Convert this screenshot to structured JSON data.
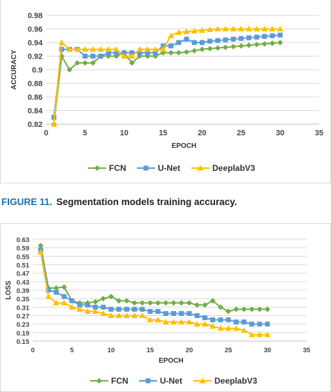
{
  "caption": {
    "label": "FIGURE 11.",
    "text": "Segmentation models training accuracy."
  },
  "colors": {
    "FCN": "#70ad47",
    "U-Net": "#5b9bd5",
    "DeeplabV3": "#ffc000",
    "grid": "#d9d9d9"
  },
  "chart_data": [
    {
      "type": "line",
      "xlabel": "EPOCH",
      "ylabel": "ACCURACY",
      "xlim": [
        0,
        35
      ],
      "ylim": [
        0.82,
        0.98
      ],
      "xticks": [
        0,
        5,
        10,
        15,
        20,
        25,
        30,
        35
      ],
      "yticks": [
        "0.82",
        "0.84",
        "0.86",
        "0.88",
        "0.9",
        "0.92",
        "0.94",
        "0.96",
        "0.98"
      ],
      "grid": "horizontal",
      "legend": "bottom",
      "x": [
        1,
        2,
        3,
        4,
        5,
        6,
        7,
        8,
        9,
        10,
        11,
        12,
        13,
        14,
        15,
        16,
        17,
        18,
        19,
        20,
        21,
        22,
        23,
        24,
        25,
        26,
        27,
        28,
        29,
        30
      ],
      "series": [
        {
          "name": "FCN",
          "marker": "diamond",
          "values": [
            0.82,
            0.92,
            0.9,
            0.91,
            0.91,
            0.91,
            0.92,
            0.92,
            0.92,
            0.925,
            0.91,
            0.92,
            0.92,
            0.92,
            0.925,
            0.925,
            0.925,
            0.926,
            0.928,
            0.93,
            0.931,
            0.932,
            0.933,
            0.934,
            0.935,
            0.936,
            0.937,
            0.938,
            0.939,
            0.94
          ]
        },
        {
          "name": "U-Net",
          "marker": "square",
          "values": [
            0.83,
            0.93,
            0.93,
            0.93,
            0.92,
            0.92,
            0.92,
            0.925,
            0.925,
            0.925,
            0.925,
            0.925,
            0.925,
            0.925,
            0.935,
            0.935,
            0.94,
            0.945,
            0.94,
            0.94,
            0.942,
            0.943,
            0.944,
            0.945,
            0.946,
            0.947,
            0.948,
            0.949,
            0.95,
            0.951
          ]
        },
        {
          "name": "DeeplabV3",
          "marker": "triangle",
          "values": [
            0.82,
            0.94,
            0.93,
            0.93,
            0.93,
            0.93,
            0.93,
            0.93,
            0.93,
            0.92,
            0.92,
            0.93,
            0.93,
            0.93,
            0.93,
            0.95,
            0.955,
            0.956,
            0.957,
            0.958,
            0.959,
            0.96,
            0.96,
            0.96,
            0.96,
            0.96,
            0.96,
            0.96,
            0.96,
            0.96
          ]
        }
      ]
    },
    {
      "type": "line",
      "xlabel": "EPOCH",
      "ylabel": "LOSS",
      "xlim": [
        0,
        35
      ],
      "ylim": [
        0.15,
        0.63
      ],
      "xticks": [
        0,
        5,
        10,
        15,
        20,
        25,
        30,
        35
      ],
      "yticks": [
        "0.15",
        "0.19",
        "0.23",
        "0.27",
        "0.31",
        "0.35",
        "0.39",
        "0.43",
        "0.47",
        "0.51",
        "0.55",
        "0.59",
        "0.63"
      ],
      "grid": "horizontal",
      "legend": "bottom",
      "x": [
        1,
        2,
        3,
        4,
        5,
        6,
        7,
        8,
        9,
        10,
        11,
        12,
        13,
        14,
        15,
        16,
        17,
        18,
        19,
        20,
        21,
        22,
        23,
        24,
        25,
        26,
        27,
        28,
        29,
        30
      ],
      "series": [
        {
          "name": "FCN",
          "marker": "diamond",
          "values": [
            0.6,
            0.4,
            0.4,
            0.405,
            0.34,
            0.33,
            0.33,
            0.335,
            0.35,
            0.36,
            0.34,
            0.34,
            0.33,
            0.33,
            0.33,
            0.33,
            0.33,
            0.33,
            0.33,
            0.33,
            0.32,
            0.32,
            0.34,
            0.31,
            0.29,
            0.3,
            0.3,
            0.3,
            0.3,
            0.3
          ]
        },
        {
          "name": "U-Net",
          "marker": "square",
          "values": [
            0.58,
            0.39,
            0.38,
            0.36,
            0.34,
            0.32,
            0.32,
            0.31,
            0.31,
            0.3,
            0.3,
            0.3,
            0.3,
            0.3,
            0.29,
            0.29,
            0.28,
            0.28,
            0.28,
            0.28,
            0.27,
            0.26,
            0.25,
            0.25,
            0.25,
            0.24,
            0.24,
            0.23,
            0.23,
            0.23
          ]
        },
        {
          "name": "DeeplabV3",
          "marker": "triangle",
          "values": [
            0.57,
            0.36,
            0.33,
            0.33,
            0.31,
            0.3,
            0.29,
            0.29,
            0.28,
            0.27,
            0.27,
            0.27,
            0.27,
            0.27,
            0.25,
            0.25,
            0.24,
            0.24,
            0.24,
            0.24,
            0.23,
            0.23,
            0.22,
            0.21,
            0.21,
            0.21,
            0.2,
            0.18,
            0.18,
            0.18
          ]
        }
      ]
    }
  ]
}
